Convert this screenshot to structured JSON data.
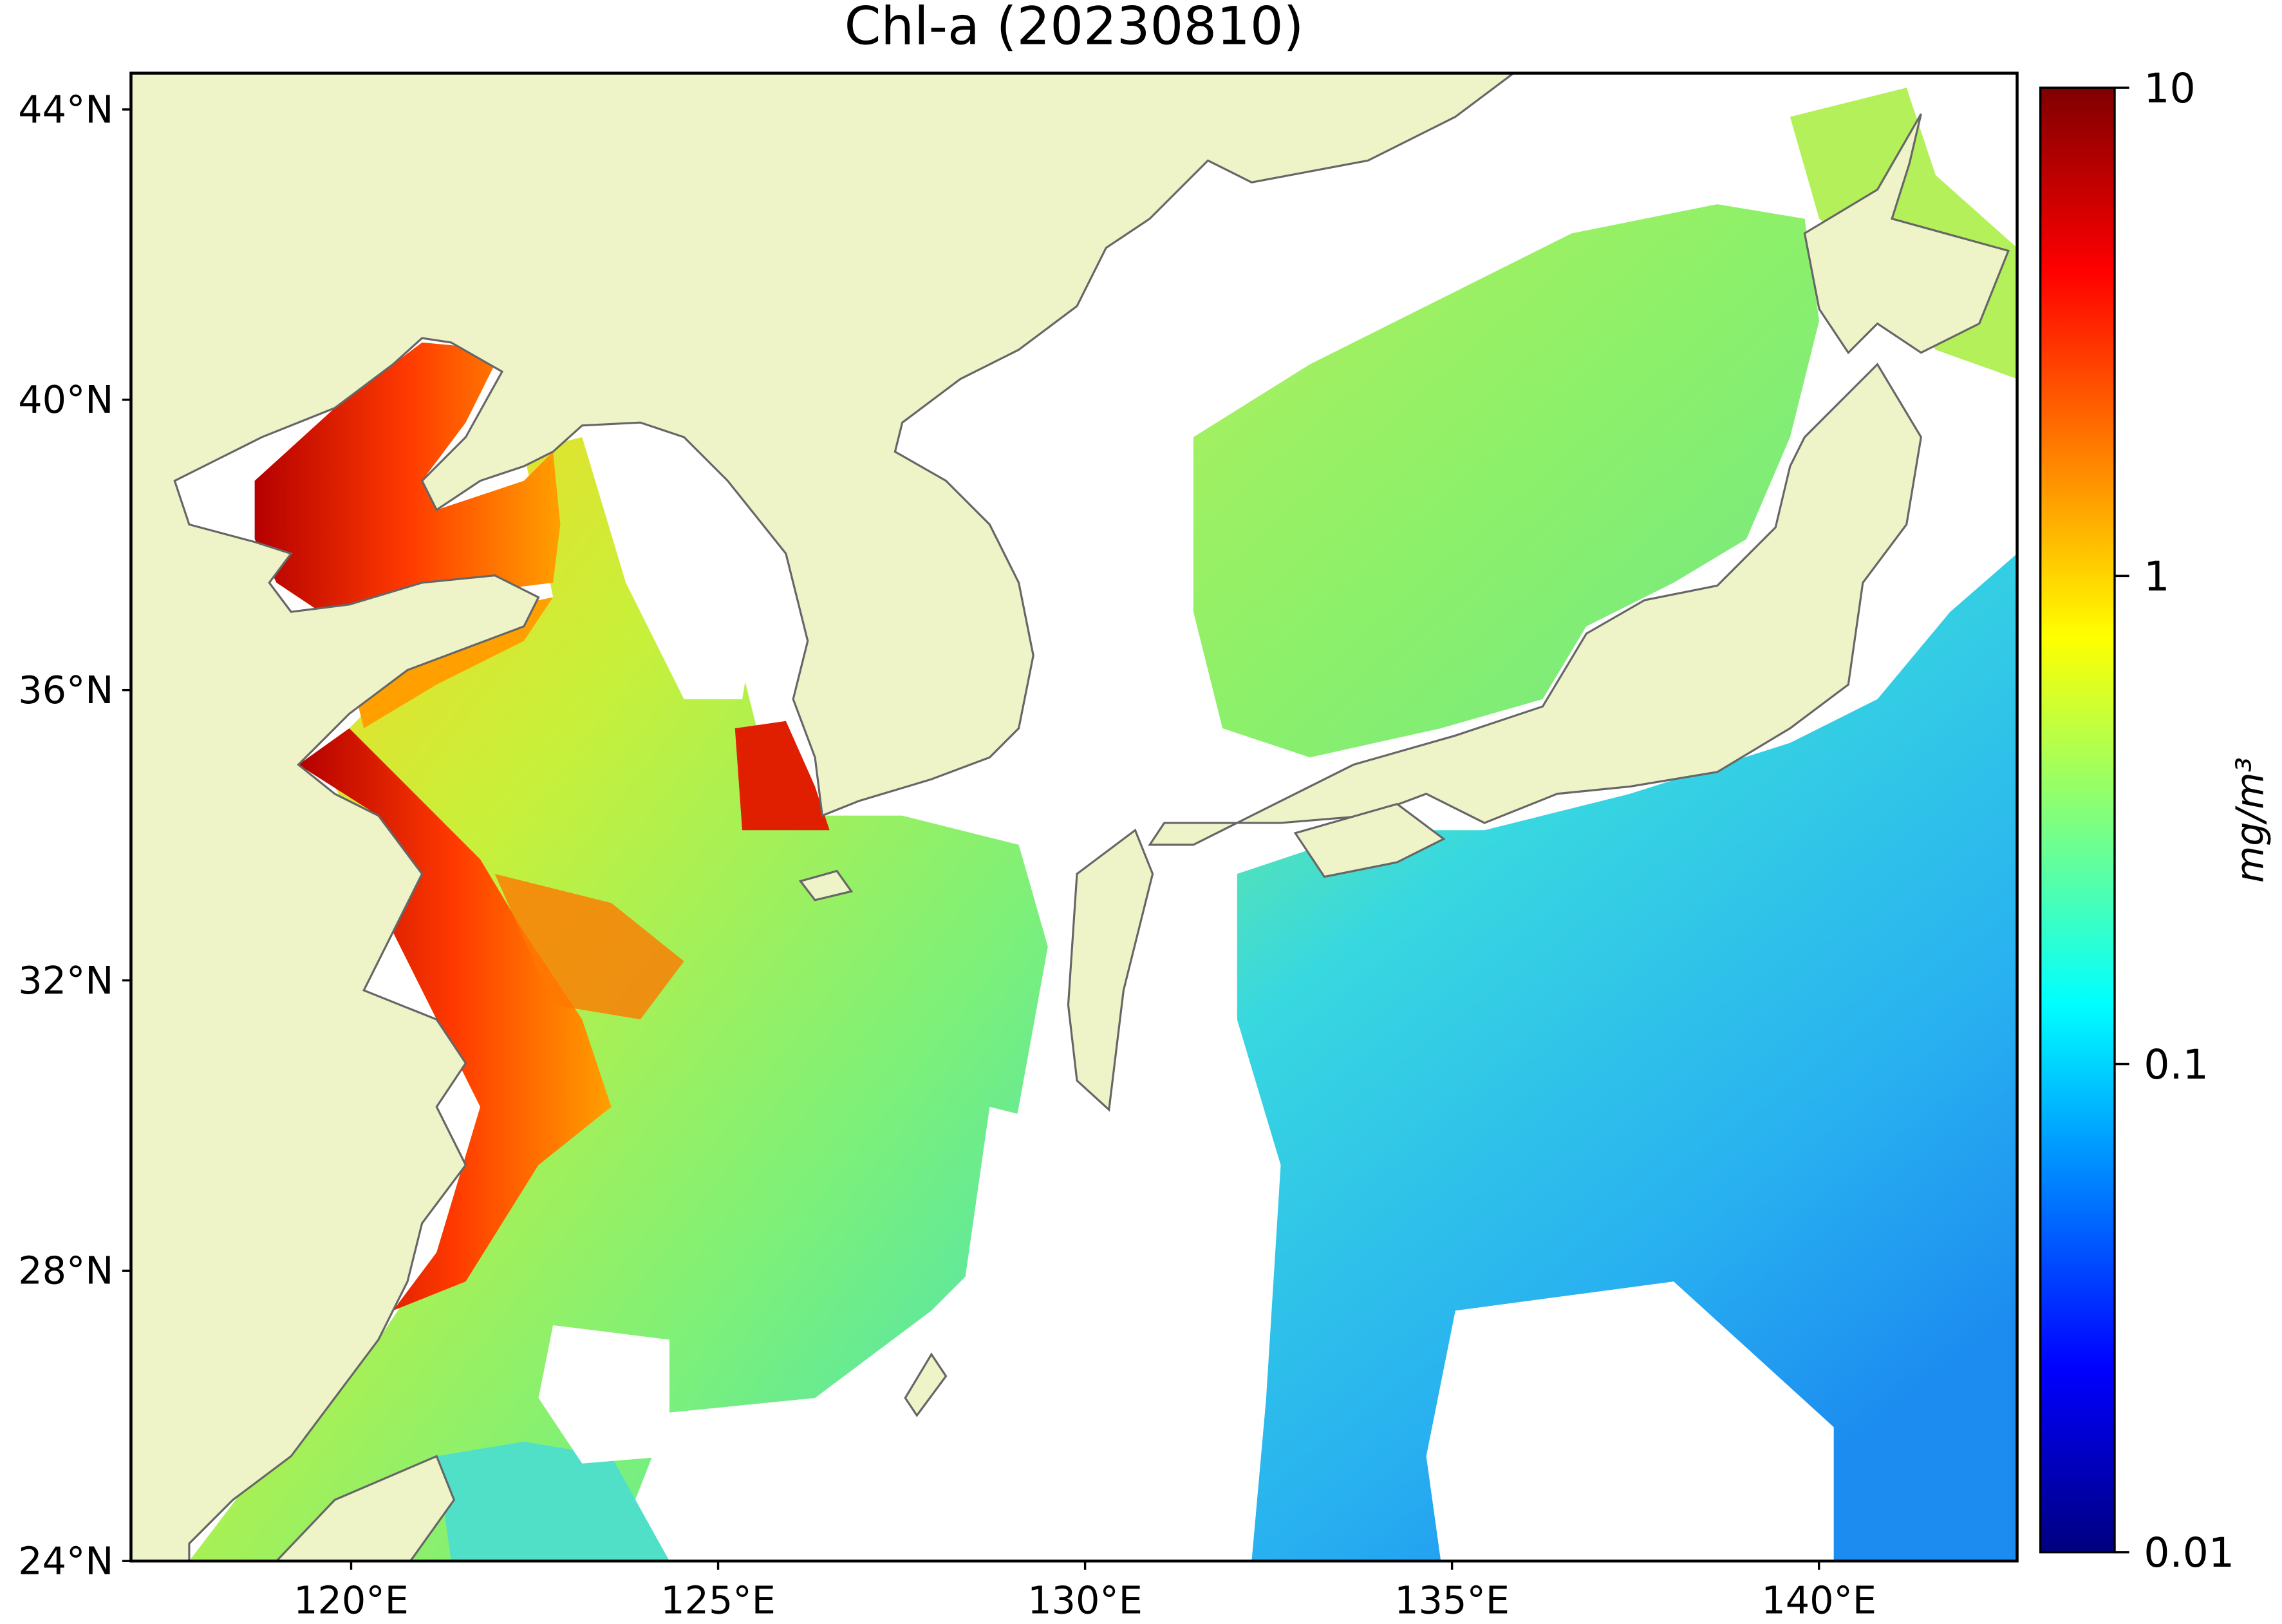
{
  "chart_data": {
    "type": "map",
    "title": "Chl-a (20230810)",
    "xlim": [
      117,
      142.7
    ],
    "ylim": [
      24,
      44.5
    ],
    "xticks": [
      {
        "value": 120,
        "label": "120°E"
      },
      {
        "value": 125,
        "label": "125°E"
      },
      {
        "value": 130,
        "label": "130°E"
      },
      {
        "value": 135,
        "label": "135°E"
      },
      {
        "value": 140,
        "label": "140°E"
      }
    ],
    "yticks": [
      {
        "value": 24,
        "label": "24°N"
      },
      {
        "value": 28,
        "label": "28°N"
      },
      {
        "value": 32,
        "label": "32°N"
      },
      {
        "value": 36,
        "label": "36°N"
      },
      {
        "value": 40,
        "label": "40°N"
      },
      {
        "value": 44,
        "label": "44°N"
      }
    ],
    "colorbar": {
      "label": "mg/m³",
      "scale": "log",
      "clim": [
        0.01,
        10
      ],
      "colormap": "jet",
      "ticks": [
        0.01,
        0.1,
        1,
        10
      ]
    },
    "land_color": "#eff3c8",
    "nodata_color": "#ffffff"
  }
}
